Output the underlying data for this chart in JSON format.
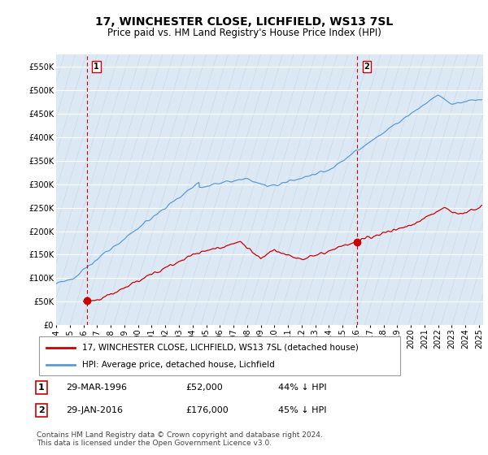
{
  "title": "17, WINCHESTER CLOSE, LICHFIELD, WS13 7SL",
  "subtitle": "Price paid vs. HM Land Registry's House Price Index (HPI)",
  "ylim": [
    0,
    575000
  ],
  "yticks": [
    0,
    50000,
    100000,
    150000,
    200000,
    250000,
    300000,
    350000,
    400000,
    450000,
    500000,
    550000
  ],
  "xlim_start": 1994.0,
  "xlim_end": 2025.3,
  "bg_color": "#dce9f5",
  "hatch_color": "#bdd0e5",
  "grid_color": "#c8d8ea",
  "hpi_color": "#5b9bd5",
  "price_color": "#cc0000",
  "dashed_line_color": "#cc0000",
  "marker1_x": 1996.24,
  "marker1_y": 52000,
  "marker2_x": 2016.08,
  "marker2_y": 176000,
  "legend_label1": "17, WINCHESTER CLOSE, LICHFIELD, WS13 7SL (detached house)",
  "legend_label2": "HPI: Average price, detached house, Lichfield",
  "table_row1_num": "1",
  "table_row1_date": "29-MAR-1996",
  "table_row1_price": "£52,000",
  "table_row1_hpi": "44% ↓ HPI",
  "table_row2_num": "2",
  "table_row2_date": "29-JAN-2016",
  "table_row2_price": "£176,000",
  "table_row2_hpi": "45% ↓ HPI",
  "footer": "Contains HM Land Registry data © Crown copyright and database right 2024.\nThis data is licensed under the Open Government Licence v3.0.",
  "title_fontsize": 10,
  "subtitle_fontsize": 8.5,
  "tick_fontsize": 7,
  "legend_fontsize": 7.5,
  "table_fontsize": 8,
  "footer_fontsize": 6.5
}
